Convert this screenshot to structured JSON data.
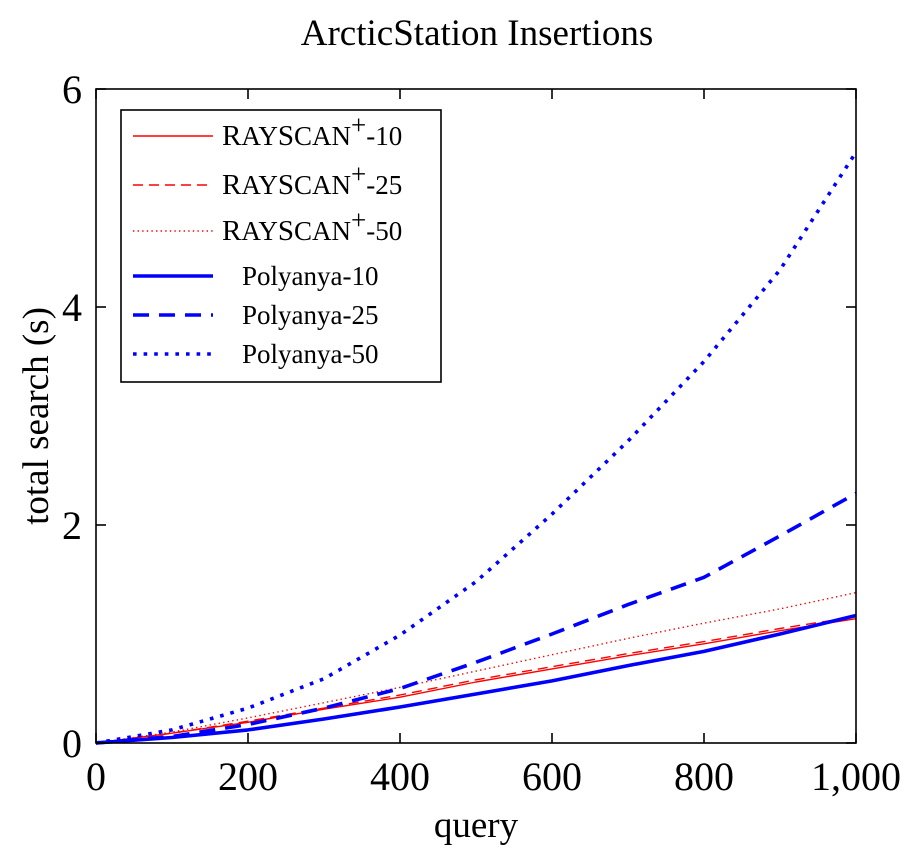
{
  "chart_data": {
    "type": "line",
    "title": "ArcticStation Insertions",
    "xlabel": "query",
    "ylabel": "total search (s)",
    "xlim": [
      0,
      1000
    ],
    "ylim": [
      0,
      6
    ],
    "xticks": [
      0,
      200,
      400,
      600,
      800,
      1000
    ],
    "xtick_labels": [
      "0",
      "200",
      "400",
      "600",
      "800",
      "1,000"
    ],
    "yticks": [
      0,
      2,
      4,
      6
    ],
    "ytick_labels": [
      "0",
      "2",
      "4",
      "6"
    ],
    "grid": false,
    "legend_position": "top-left",
    "x": [
      0,
      100,
      200,
      300,
      400,
      500,
      600,
      700,
      800,
      900,
      1000
    ],
    "series": [
      {
        "name": "RAYSCAN+-10",
        "legend_prefix": "R",
        "legend_smallcaps": "AY",
        "legend_prefix2": "S",
        "legend_smallcaps2": "CAN",
        "legend_sup": "+",
        "legend_suffix": "-10",
        "color": "#ff0000",
        "style": "solid",
        "width": 1.4,
        "values": [
          0,
          0.09,
          0.19,
          0.31,
          0.42,
          0.56,
          0.68,
          0.8,
          0.91,
          1.03,
          1.14
        ]
      },
      {
        "name": "RAYSCAN+-25",
        "legend_prefix": "R",
        "legend_smallcaps": "AY",
        "legend_prefix2": "S",
        "legend_smallcaps2": "CAN",
        "legend_sup": "+",
        "legend_suffix": "-25",
        "color": "#ff0000",
        "style": "dashed",
        "width": 1.4,
        "values": [
          0,
          0.09,
          0.2,
          0.32,
          0.44,
          0.58,
          0.7,
          0.82,
          0.93,
          1.05,
          1.16
        ]
      },
      {
        "name": "RAYSCAN+-50",
        "legend_prefix": "R",
        "legend_smallcaps": "AY",
        "legend_prefix2": "S",
        "legend_smallcaps2": "CAN",
        "legend_sup": "+",
        "legend_suffix": "-50",
        "color": "#ff0000",
        "style": "dotted",
        "width": 1.4,
        "values": [
          0,
          0.1,
          0.23,
          0.37,
          0.51,
          0.66,
          0.81,
          0.96,
          1.1,
          1.23,
          1.38
        ]
      },
      {
        "name": "Polyanya-10",
        "legend_prefix": "Polyanya-10",
        "color": "#0000ff",
        "style": "solid",
        "width": 3.6,
        "values": [
          0,
          0.05,
          0.12,
          0.22,
          0.33,
          0.45,
          0.57,
          0.71,
          0.84,
          1.0,
          1.17
        ]
      },
      {
        "name": "Polyanya-25",
        "legend_prefix": "Polyanya-25",
        "color": "#0000ff",
        "style": "dashed",
        "width": 3.6,
        "values": [
          0,
          0.06,
          0.17,
          0.32,
          0.5,
          0.74,
          1.0,
          1.27,
          1.52,
          1.9,
          2.29
        ]
      },
      {
        "name": "Polyanya-50",
        "legend_prefix": "Polyanya-50",
        "color": "#0000ff",
        "style": "dotted",
        "width": 3.6,
        "values": [
          0,
          0.12,
          0.32,
          0.59,
          0.99,
          1.48,
          2.1,
          2.77,
          3.5,
          4.34,
          5.42
        ]
      }
    ]
  }
}
